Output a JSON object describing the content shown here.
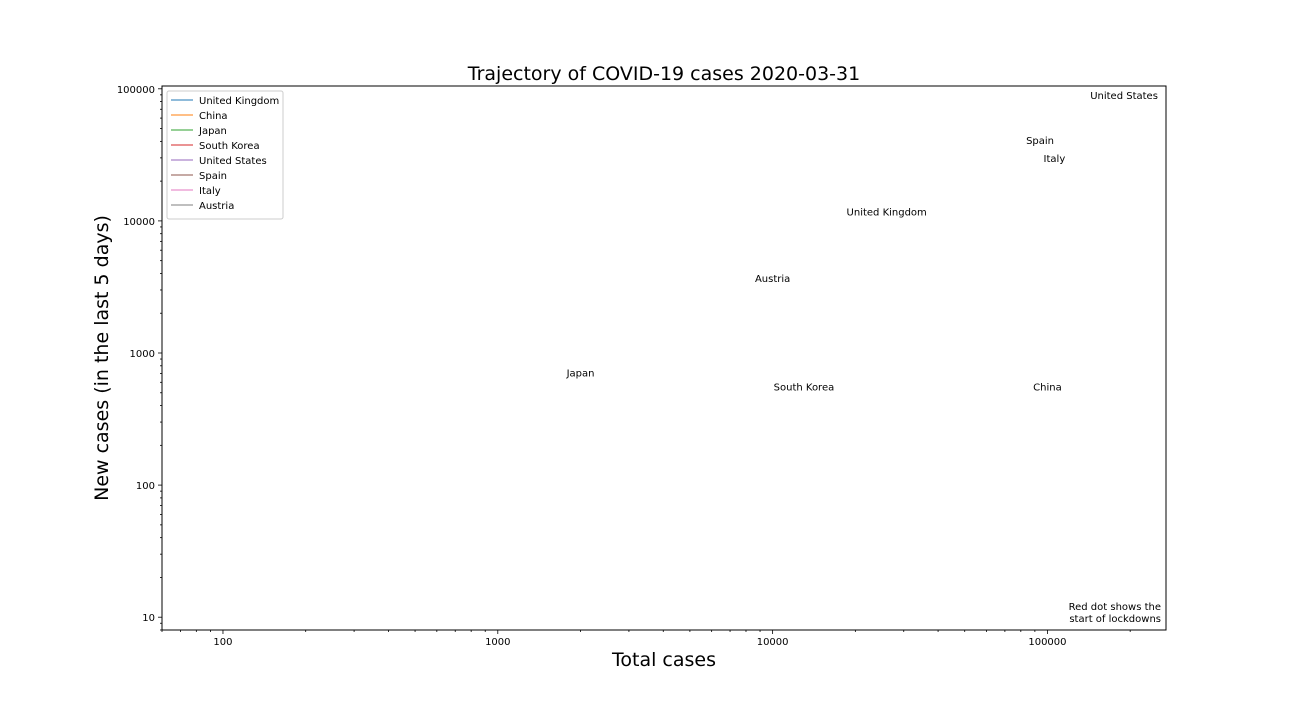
{
  "chart_data": {
    "type": "line",
    "title": "Trajectory of COVID-19 cases 2020-03-31",
    "xlabel": "Total cases",
    "ylabel": "New cases (in the last 5 days)",
    "x_scale": "log",
    "y_scale": "log",
    "xlim": [
      60,
      270000
    ],
    "ylim": [
      8,
      105000
    ],
    "x_ticks": [
      {
        "value": 100,
        "label": "100"
      },
      {
        "value": 1000,
        "label": "1000"
      },
      {
        "value": 10000,
        "label": "10000"
      },
      {
        "value": 100000,
        "label": "100000"
      }
    ],
    "y_ticks": [
      {
        "value": 10,
        "label": "10"
      },
      {
        "value": 100,
        "label": "100"
      },
      {
        "value": 1000,
        "label": "1000"
      },
      {
        "value": 10000,
        "label": "10000"
      },
      {
        "value": 100000,
        "label": "100000"
      }
    ],
    "grid": false,
    "legend_position": "top-left",
    "series": [
      {
        "name": "United Kingdom",
        "color": "#1f77b4"
      },
      {
        "name": "China",
        "color": "#ff7f0e"
      },
      {
        "name": "Japan",
        "color": "#2ca02c"
      },
      {
        "name": "South Korea",
        "color": "#d62728"
      },
      {
        "name": "United States",
        "color": "#9467bd"
      },
      {
        "name": "Spain",
        "color": "#8c564b"
      },
      {
        "name": "Italy",
        "color": "#e377c2"
      },
      {
        "name": "Austria",
        "color": "#7f7f7f"
      }
    ],
    "annotations": [
      {
        "text": "United States",
        "x": 190000,
        "y": 90000
      },
      {
        "text": "Spain",
        "x": 94000,
        "y": 41000
      },
      {
        "text": "Italy",
        "x": 106000,
        "y": 30000
      },
      {
        "text": "United Kingdom",
        "x": 26000,
        "y": 11800
      },
      {
        "text": "Austria",
        "x": 10000,
        "y": 3700
      },
      {
        "text": "Japan",
        "x": 2000,
        "y": 710
      },
      {
        "text": "South Korea",
        "x": 13000,
        "y": 560
      },
      {
        "text": "China",
        "x": 100000,
        "y": 560
      }
    ],
    "note_lines": [
      "Red dot shows the",
      "start of lockdowns"
    ]
  }
}
